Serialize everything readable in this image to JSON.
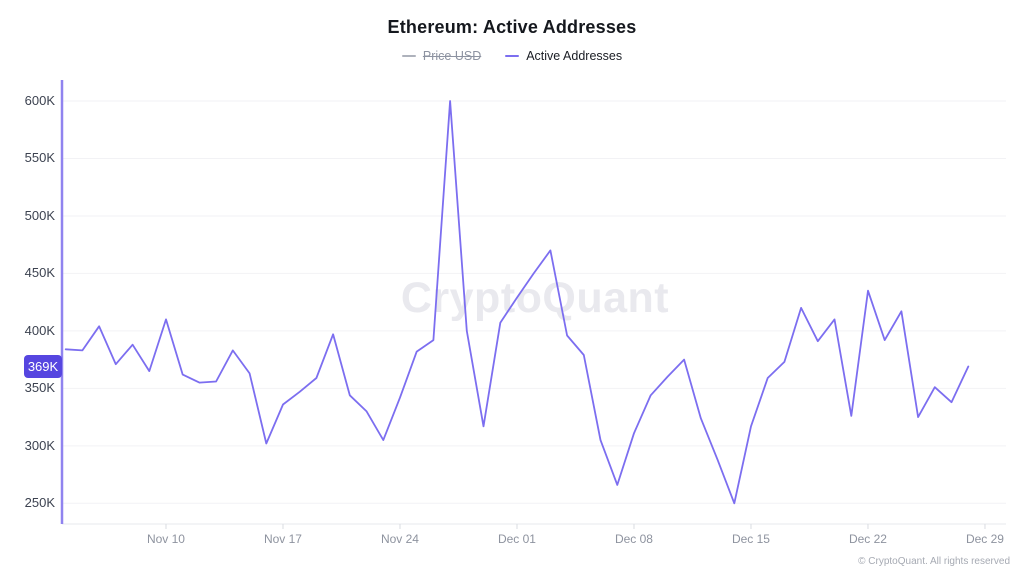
{
  "header": {
    "title": "Ethereum: Active Addresses"
  },
  "legend": {
    "items": [
      {
        "label": "Price USD",
        "color": "#aeb2bc",
        "text_color": "#8d93a1",
        "disabled": true
      },
      {
        "label": "Active Addresses",
        "color": "#7c6ef0",
        "text_color": "#1a1d24",
        "disabled": false
      }
    ]
  },
  "badge": {
    "label": "369K",
    "value": 369,
    "color": "#5646e0"
  },
  "watermark": "CryptoQuant",
  "footer": {
    "copyright": "© CryptoQuant. All rights reserved"
  },
  "chart_data": {
    "type": "line",
    "title": "Ethereum: Active Addresses",
    "unit": "thousand active addresses (K)",
    "grid": "horizontal",
    "legend_position": "top",
    "latest_value_label": "369K",
    "ylim": [
      232,
      620
    ],
    "x": [
      "Nov 04",
      "Nov 05",
      "Nov 06",
      "Nov 07",
      "Nov 08",
      "Nov 09",
      "Nov 10",
      "Nov 11",
      "Nov 12",
      "Nov 13",
      "Nov 14",
      "Nov 15",
      "Nov 16",
      "Nov 17",
      "Nov 18",
      "Nov 19",
      "Nov 20",
      "Nov 21",
      "Nov 22",
      "Nov 23",
      "Nov 24",
      "Nov 25",
      "Nov 26",
      "Nov 27",
      "Nov 28",
      "Nov 29",
      "Nov 30",
      "Dec 01",
      "Dec 02",
      "Dec 03",
      "Dec 04",
      "Dec 05",
      "Dec 06",
      "Dec 07",
      "Dec 08",
      "Dec 09",
      "Dec 10",
      "Dec 11",
      "Dec 12",
      "Dec 13",
      "Dec 14",
      "Dec 15",
      "Dec 16",
      "Dec 17",
      "Dec 18",
      "Dec 19",
      "Dec 20",
      "Dec 21",
      "Dec 22",
      "Dec 23",
      "Dec 24",
      "Dec 25",
      "Dec 26",
      "Dec 27",
      "Dec 28"
    ],
    "series": [
      {
        "name": "Price USD",
        "visible": false,
        "color": "#aeb2bc",
        "values": []
      },
      {
        "name": "Active Addresses",
        "visible": true,
        "color": "#7c6ef0",
        "values": [
          384,
          383,
          404,
          371,
          388,
          365,
          410,
          362,
          355,
          356,
          383,
          363,
          302,
          336,
          347,
          359,
          397,
          344,
          330,
          305,
          342,
          382,
          392,
          600,
          400,
          317,
          407,
          429,
          450,
          470,
          396,
          379,
          305,
          266,
          311,
          344,
          360,
          375,
          324,
          288,
          250,
          317,
          359,
          373,
          420,
          391,
          410,
          326,
          435,
          392,
          417,
          325,
          351,
          338,
          369
        ]
      }
    ],
    "y_ticks": [
      {
        "label": "250K",
        "value": 250
      },
      {
        "label": "300K",
        "value": 300
      },
      {
        "label": "350K",
        "value": 350
      },
      {
        "label": "400K",
        "value": 400
      },
      {
        "label": "450K",
        "value": 450
      },
      {
        "label": "500K",
        "value": 500
      },
      {
        "label": "550K",
        "value": 550
      },
      {
        "label": "600K",
        "value": 600
      }
    ],
    "x_ticks": [
      {
        "label": "Nov 10",
        "day_index": 6
      },
      {
        "label": "Nov 17",
        "day_index": 13
      },
      {
        "label": "Nov 24",
        "day_index": 20
      },
      {
        "label": "Dec 01",
        "day_index": 27
      },
      {
        "label": "Dec 08",
        "day_index": 34
      },
      {
        "label": "Dec 15",
        "day_index": 41
      },
      {
        "label": "Dec 22",
        "day_index": 48
      },
      {
        "label": "Dec 29",
        "day_index": 55
      }
    ]
  }
}
